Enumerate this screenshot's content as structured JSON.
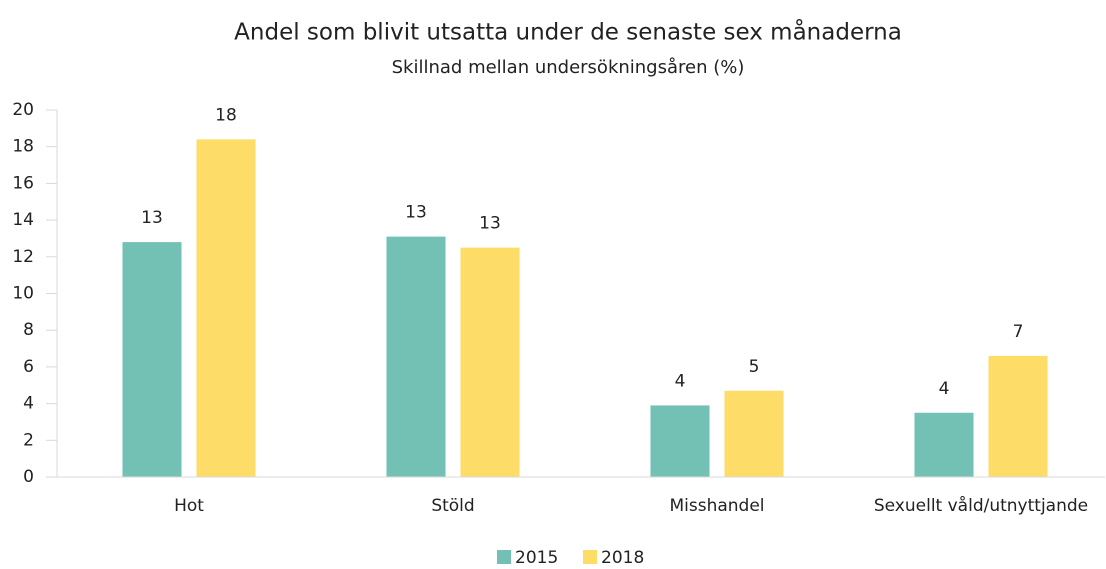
{
  "chart_data": {
    "type": "bar",
    "title": "Andel som blivit utsatta under de senaste sex månaderna",
    "subtitle": "Skillnad mellan undersökningsåren (%)",
    "categories": [
      "Hot",
      "Stöld",
      "Misshandel",
      "Sexuellt våld/utnyttjande"
    ],
    "series": [
      {
        "name": "2015",
        "color": "#72c1b4",
        "values": [
          12.8,
          13.1,
          3.9,
          3.5
        ],
        "value_labels": [
          "13",
          "13",
          "4",
          "4"
        ]
      },
      {
        "name": "2018",
        "color": "#fddd67",
        "values": [
          18.4,
          12.5,
          4.7,
          6.6
        ],
        "value_labels": [
          "18",
          "13",
          "5",
          "7"
        ]
      }
    ],
    "ylim": [
      0,
      20
    ],
    "yticks": [
      0,
      2,
      4,
      6,
      8,
      10,
      12,
      14,
      16,
      18,
      20
    ],
    "grid": false,
    "legend": "bottom"
  }
}
